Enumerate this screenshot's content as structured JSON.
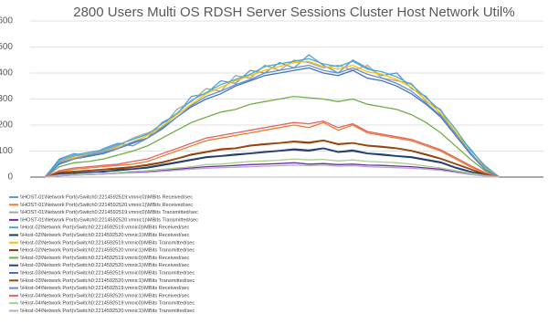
{
  "chart_data": {
    "type": "line",
    "title": "2800 Users Multi OS RDSH Server Sessions Cluster Host Network Util%",
    "categories": [
      null,
      null,
      null,
      null,
      null,
      null,
      null,
      null,
      null,
      null,
      null,
      null,
      null,
      null,
      null,
      null,
      null,
      null,
      null,
      null,
      null,
      null,
      null,
      null,
      null,
      null,
      null,
      null,
      null,
      null,
      null,
      null,
      null,
      null,
      null,
      null
    ],
    "ylim": [
      0,
      600
    ],
    "yticks": [
      0,
      100,
      200,
      300,
      400,
      500,
      600
    ],
    "grid": true,
    "legend": "bottom",
    "series": [
      {
        "name": "\\\\HOST-01\\Network Port(vSwitch0:2214592519:vmnic0)\\MBits Received/sec",
        "color": "#5b9bd5",
        "values": [
          0,
          0,
          70,
          90,
          80,
          110,
          130,
          120,
          150,
          210,
          240,
          310,
          320,
          370,
          360,
          410,
          400,
          440,
          420,
          470,
          430,
          400,
          450,
          420,
          390,
          400,
          340,
          310,
          240,
          170,
          110,
          40,
          0,
          0,
          0,
          0
        ]
      },
      {
        "name": "\\\\HOST-01\\Network Port(vSwitch0:2214592520:vmnic1)\\MBits Received/sec",
        "color": "#ed7d31",
        "values": [
          0,
          0,
          20,
          30,
          35,
          40,
          45,
          50,
          60,
          80,
          100,
          120,
          140,
          150,
          160,
          170,
          180,
          190,
          200,
          190,
          210,
          180,
          200,
          170,
          160,
          150,
          140,
          120,
          100,
          70,
          40,
          15,
          0,
          0,
          0,
          0
        ]
      },
      {
        "name": "\\\\HOST-01\\Network Port(vSwitch0:2214592519:vmnic0)\\MBits Transmitted/sec",
        "color": "#a5a5a5",
        "values": [
          0,
          0,
          60,
          80,
          90,
          100,
          120,
          150,
          170,
          190,
          260,
          290,
          340,
          330,
          390,
          380,
          430,
          410,
          450,
          440,
          420,
          430,
          410,
          430,
          380,
          370,
          360,
          290,
          260,
          160,
          90,
          30,
          0,
          0,
          0,
          0
        ]
      },
      {
        "name": "\\\\HOST-01\\Network Port(vSwitch0:2214592520:vmnic1)\\MBits Transmitted/sec",
        "color": "#7030a0",
        "values": [
          0,
          0,
          5,
          8,
          10,
          12,
          15,
          18,
          20,
          25,
          30,
          35,
          40,
          42,
          45,
          48,
          50,
          52,
          55,
          50,
          52,
          48,
          50,
          46,
          45,
          42,
          40,
          35,
          30,
          20,
          12,
          5,
          0,
          0,
          0,
          0
        ]
      },
      {
        "name": "\\\\Host-02\\Network Port(vSwitch0:2214592519:vmnic0)\\MBits Received/sec",
        "color": "#4bacc6",
        "values": [
          0,
          0,
          65,
          85,
          95,
          105,
          125,
          145,
          165,
          205,
          245,
          295,
          325,
          355,
          375,
          395,
          425,
          435,
          445,
          455,
          435,
          425,
          445,
          415,
          405,
          385,
          355,
          305,
          255,
          185,
          105,
          45,
          0,
          0,
          0,
          0
        ]
      },
      {
        "name": "\\\\Host-02\\Network Port(vSwitch0:2214592520:vmnic1)\\MBits Received/sec",
        "color": "#1f3864",
        "values": [
          0,
          0,
          10,
          15,
          18,
          22,
          25,
          30,
          35,
          45,
          55,
          65,
          75,
          80,
          85,
          90,
          95,
          100,
          105,
          100,
          110,
          95,
          100,
          90,
          85,
          80,
          75,
          65,
          55,
          35,
          20,
          8,
          0,
          0,
          0,
          0
        ]
      },
      {
        "name": "\\\\Host-02\\Network Port(vSwitch0:2214592519:vmnic0)\\MBits Transmitted/sec",
        "color": "#ffc000",
        "values": [
          0,
          0,
          55,
          75,
          85,
          95,
          115,
          135,
          160,
          195,
          240,
          280,
          320,
          345,
          370,
          390,
          410,
          425,
          440,
          445,
          425,
          415,
          430,
          405,
          395,
          375,
          345,
          295,
          245,
          175,
          95,
          35,
          0,
          0,
          0,
          0
        ]
      },
      {
        "name": "\\\\Host-02\\Network Port(vSwitch0:2214592520:vmnic1)\\MBits Transmitted/sec",
        "color": "#843c0c",
        "values": [
          0,
          0,
          15,
          20,
          25,
          28,
          32,
          38,
          45,
          55,
          70,
          85,
          95,
          105,
          110,
          120,
          125,
          130,
          135,
          130,
          140,
          125,
          130,
          120,
          115,
          110,
          100,
          85,
          70,
          50,
          30,
          10,
          0,
          0,
          0,
          0
        ]
      },
      {
        "name": "\\\\Host-03\\Network Port(vSwitch0:2214592519:vmnic0)\\MBits Received/sec",
        "color": "#70ad47",
        "values": [
          0,
          0,
          40,
          55,
          60,
          70,
          85,
          100,
          120,
          150,
          180,
          210,
          230,
          250,
          260,
          280,
          290,
          300,
          310,
          305,
          300,
          290,
          300,
          280,
          270,
          260,
          240,
          210,
          170,
          120,
          70,
          25,
          0,
          0,
          0,
          0
        ]
      },
      {
        "name": "\\\\Host-03\\Network Port(vSwitch0:2214592520:vmnic1)\\MBits Received/sec",
        "color": "#264478",
        "values": [
          0,
          0,
          12,
          14,
          20,
          20,
          28,
          32,
          38,
          48,
          58,
          68,
          78,
          82,
          88,
          92,
          98,
          102,
          108,
          104,
          112,
          98,
          104,
          92,
          88,
          82,
          78,
          68,
          58,
          38,
          22,
          10,
          0,
          0,
          0,
          0
        ]
      },
      {
        "name": "\\\\Host-03\\Network Port(vSwitch0:2214592519:vmnic0)\\MBits Transmitted/sec",
        "color": "#4472c4",
        "values": [
          0,
          0,
          50,
          70,
          80,
          90,
          110,
          130,
          150,
          185,
          230,
          270,
          300,
          320,
          350,
          370,
          390,
          400,
          410,
          420,
          400,
          390,
          410,
          380,
          370,
          350,
          320,
          280,
          230,
          160,
          90,
          30,
          0,
          0,
          0,
          0
        ]
      },
      {
        "name": "\\\\Host-03\\Network Port(vSwitch0:2214592520:vmnic1)\\MBits Transmitted/sec",
        "color": "#9e480e",
        "values": [
          0,
          0,
          18,
          22,
          26,
          30,
          35,
          40,
          48,
          58,
          72,
          88,
          98,
          108,
          112,
          122,
          128,
          132,
          138,
          134,
          142,
          128,
          132,
          122,
          118,
          112,
          102,
          88,
          72,
          52,
          32,
          12,
          0,
          0,
          0,
          0
        ]
      },
      {
        "name": "\\\\Host-04\\Network Port(vSwitch0:2214592519:vmnic0)\\MBits Received/sec",
        "color": "#698ed0",
        "values": [
          0,
          0,
          55,
          70,
          85,
          95,
          110,
          135,
          150,
          190,
          230,
          275,
          310,
          330,
          355,
          375,
          400,
          410,
          420,
          430,
          410,
          400,
          420,
          395,
          380,
          360,
          330,
          285,
          235,
          165,
          95,
          32,
          0,
          0,
          0,
          0
        ]
      },
      {
        "name": "\\\\Host-04\\Network Port(vSwitch0:2214592520:vmnic1)\\MBits Received/sec",
        "color": "#e06666",
        "values": [
          0,
          0,
          25,
          35,
          40,
          45,
          50,
          60,
          70,
          90,
          110,
          130,
          150,
          160,
          170,
          180,
          190,
          200,
          210,
          205,
          215,
          190,
          205,
          175,
          165,
          155,
          145,
          125,
          105,
          75,
          45,
          18,
          0,
          0,
          0,
          0
        ]
      },
      {
        "name": "\\\\Host-04\\Network Port(vSwitch0:2214592519:vmnic0)\\MBits Transmitted/sec",
        "color": "#a9d18e",
        "values": [
          0,
          0,
          8,
          10,
          12,
          15,
          18,
          22,
          25,
          30,
          35,
          40,
          48,
          50,
          55,
          60,
          62,
          65,
          70,
          66,
          68,
          62,
          66,
          60,
          58,
          55,
          50,
          42,
          35,
          25,
          15,
          6,
          0,
          0,
          0,
          0
        ]
      },
      {
        "name": "\\\\Host-04\\Network Port(vSwitch0:2214592520:vmnic1)\\MBits Transmitted/sec",
        "color": "#b4a7d6",
        "values": [
          0,
          0,
          6,
          8,
          10,
          12,
          14,
          16,
          18,
          22,
          26,
          30,
          34,
          36,
          38,
          40,
          42,
          44,
          46,
          44,
          46,
          42,
          44,
          40,
          38,
          36,
          34,
          30,
          26,
          18,
          10,
          4,
          0,
          0,
          0,
          0
        ]
      }
    ]
  }
}
